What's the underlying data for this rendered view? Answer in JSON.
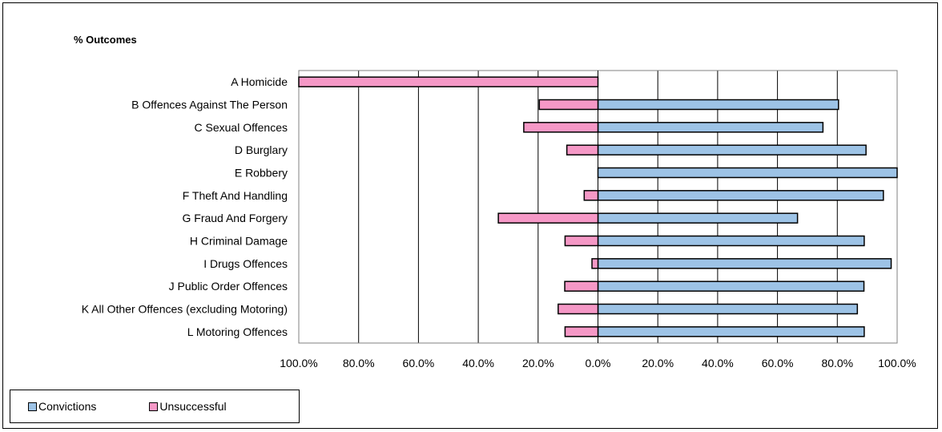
{
  "colors": {
    "convictions": "#9dc3e6",
    "unsuccessful": "#f598c6",
    "grid": "#000000",
    "plot_bg": "#ffffff"
  },
  "chart_data": {
    "type": "bar",
    "orientation": "horizontal",
    "title": "% Outcomes",
    "categories": [
      "A Homicide",
      "B Offences Against The Person",
      "C Sexual Offences",
      "D Burglary",
      "E Robbery",
      "F Theft And Handling",
      "G Fraud And Forgery",
      "H Criminal Damage",
      "I Drugs Offences",
      "J Public Order Offences",
      "K All Other Offences (excluding Motoring)",
      "L Motoring Offences"
    ],
    "series": [
      {
        "name": "Convictions",
        "values": [
          0,
          80.4,
          75.2,
          89.6,
          100,
          95.4,
          66.7,
          89.0,
          98.0,
          88.9,
          86.7,
          89.0
        ]
      },
      {
        "name": "Unsuccessful",
        "values": [
          -100,
          -19.6,
          -24.8,
          -10.4,
          0,
          -4.6,
          -33.3,
          -11.0,
          -2.0,
          -11.1,
          -13.3,
          -11.0
        ]
      }
    ],
    "xlim": [
      -100,
      100
    ],
    "x_ticks": [
      -100,
      -80,
      -60,
      -40,
      -20,
      0,
      20,
      40,
      60,
      80,
      100
    ],
    "x_tick_labels": [
      "100.0%",
      "80.0%",
      "60.0%",
      "40.0%",
      "20.0%",
      "0.0%",
      "20.0%",
      "40.0%",
      "60.0%",
      "80.0%",
      "100.0%"
    ],
    "grid": true,
    "legend_position": "bottom-left"
  }
}
